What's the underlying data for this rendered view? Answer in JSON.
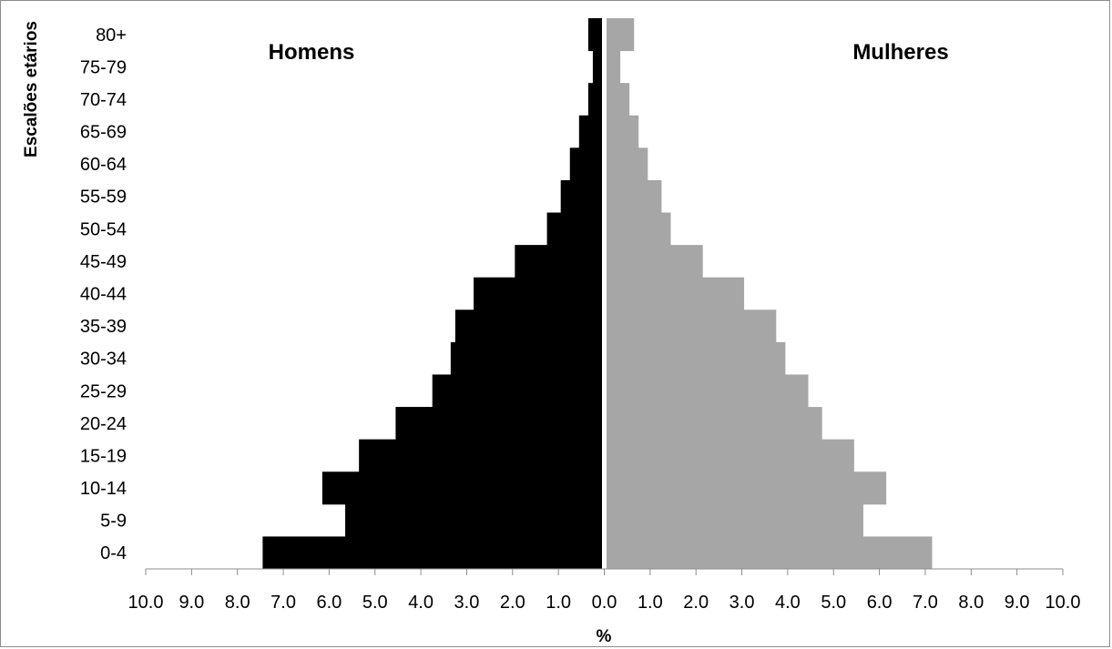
{
  "chart_data": {
    "type": "bar",
    "subtype": "population-pyramid",
    "orientation": "horizontal",
    "categories": [
      "0-4",
      "5-9",
      "10-14",
      "15-19",
      "20-24",
      "25-29",
      "30-34",
      "35-39",
      "40-44",
      "45-49",
      "50-54",
      "55-59",
      "60-64",
      "65-69",
      "70-74",
      "75-79",
      "80+"
    ],
    "series": [
      {
        "name": "Homens",
        "side": "left",
        "color": "#000000",
        "values": [
          7.4,
          5.6,
          6.1,
          5.3,
          4.5,
          3.7,
          3.3,
          3.2,
          2.8,
          1.9,
          1.2,
          0.9,
          0.7,
          0.5,
          0.3,
          0.2,
          0.3
        ]
      },
      {
        "name": "Mulheres",
        "side": "right",
        "color": "#a6a6a6",
        "values": [
          7.1,
          5.6,
          6.1,
          5.4,
          4.7,
          4.4,
          3.9,
          3.7,
          3.0,
          2.1,
          1.4,
          1.2,
          0.9,
          0.7,
          0.5,
          0.3,
          0.6
        ]
      }
    ],
    "xlabel": "%",
    "ylabel": "Escalões etários",
    "xlim": [
      -10,
      10
    ],
    "xticks": [
      "10.0",
      "9.0",
      "8.0",
      "7.0",
      "6.0",
      "5.0",
      "4.0",
      "3.0",
      "2.0",
      "1.0",
      "0.0",
      "1.0",
      "2.0",
      "3.0",
      "4.0",
      "5.0",
      "6.0",
      "7.0",
      "8.0",
      "9.0",
      "10.0"
    ],
    "grid": false,
    "legend": "none"
  }
}
